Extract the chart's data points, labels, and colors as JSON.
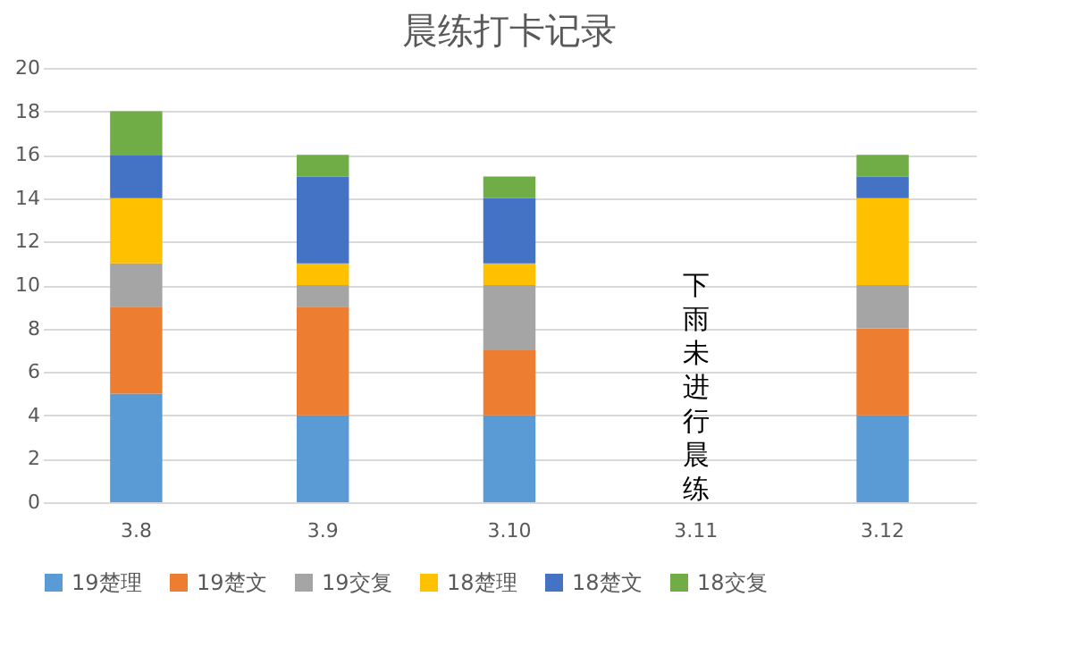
{
  "chart_data": {
    "type": "bar",
    "title": "晨练打卡记录",
    "stacked": true,
    "categories": [
      "3.8",
      "3.9",
      "3.10",
      "3.11",
      "3.12"
    ],
    "series": [
      {
        "name": "19楚理",
        "color": "#5b9bd5",
        "values": [
          5,
          4,
          4,
          null,
          4
        ]
      },
      {
        "name": "19楚文",
        "color": "#ed7d31",
        "values": [
          4,
          5,
          3,
          null,
          4
        ]
      },
      {
        "name": "19交复",
        "color": "#a5a5a5",
        "values": [
          2,
          1,
          3,
          null,
          2
        ]
      },
      {
        "name": "18楚理",
        "color": "#ffc000",
        "values": [
          3,
          1,
          1,
          null,
          4
        ]
      },
      {
        "name": "18楚文",
        "color": "#4472c4",
        "values": [
          2,
          4,
          3,
          null,
          1
        ]
      },
      {
        "name": "18交复",
        "color": "#70ad47",
        "values": [
          2,
          1,
          1,
          null,
          1
        ]
      }
    ],
    "ylim": [
      0,
      20
    ],
    "yticks": [
      0,
      2,
      4,
      6,
      8,
      10,
      12,
      14,
      16,
      18,
      20
    ],
    "grid": "y",
    "legend": "bottom",
    "annotations": [
      "下雨未进行晨练"
    ]
  }
}
